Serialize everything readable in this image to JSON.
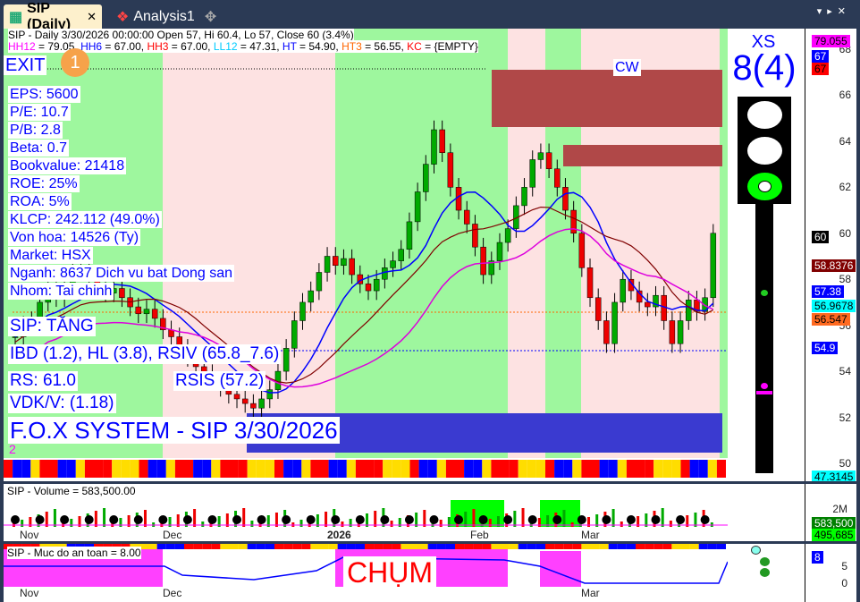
{
  "tabs": [
    {
      "label": "SIP (Daily)",
      "icon": "chart-icon"
    },
    {
      "label": "Analysis1",
      "icon": "analysis-icon"
    }
  ],
  "header": {
    "line1": "SIP - Daily 3/30/2026 00:00:00 Open 57, Hi 60.4, Lo 57, Close 60 (3.4%)",
    "hh12": "HH12",
    "hh12v": " = 79.05, ",
    "hh6": "HH6",
    "hh6v": " = 67.00, ",
    "hh3": "HH3",
    "hh3v": " = 67.00, ",
    "ll12": "LL12",
    "ll12v": " = 47.31, ",
    "ht": "HT",
    "htv": "  = 54.90, ",
    "ht3": "HT3",
    "ht3v": "  = 56.55, ",
    "kc": "KC",
    "kcv": " = {EMPTY}"
  },
  "overlay": {
    "exit": "EXIT",
    "exit_num": "1",
    "cw": "CW",
    "eps": "EPS: 5600",
    "pe": "P/E: 10.7",
    "pb": "P/B: 2.8",
    "beta": "Beta: 0.7",
    "bookvalue": "Bookvalue: 21418",
    "roe": "ROE: 25%",
    "roa": "ROA: 5%",
    "klcp": "KLCP: 242.112 (49.0%)",
    "vonhoa": "Von hoa: 14526 (Ty)",
    "market": "Market: HSX",
    "nganh": "Nganh: 8637 Dich vu bat Dong san",
    "nhom": "Nhom: Tai chinh",
    "status": "SIP: TĂNG",
    "ibd": "IBD (1.2), HL (3.8), RSIV (65.8_7.6)",
    "rs": "RS: 61.0",
    "rsis": "RSIS (57.2)",
    "vdk": "VDK/V:  (1.18)",
    "fox": "F.O.X SYSTEM - SIP 3/30/2026",
    "two": "2"
  },
  "signal": {
    "title": "XS",
    "value": "8(4)",
    "lights": [
      "off",
      "off",
      "green"
    ]
  },
  "price_axis": {
    "ticks": [
      "68",
      "66",
      "64",
      "62",
      "60",
      "58",
      "56",
      "54",
      "52",
      "50"
    ],
    "labels": [
      {
        "v": "79.055",
        "bg": "#ff00ff",
        "c": "#000"
      },
      {
        "v": "67",
        "bg": "#0000ff",
        "c": "#fff"
      },
      {
        "v": "67",
        "bg": "#ff0000",
        "c": "#000"
      },
      {
        "v": "60",
        "bg": "#000",
        "c": "#fff"
      },
      {
        "v": "58.8376",
        "bg": "#800000",
        "c": "#fff"
      },
      {
        "v": "57.38",
        "bg": "#0000ff",
        "c": "#fff"
      },
      {
        "v": "56.9678",
        "bg": "#00ffff",
        "c": "#000"
      },
      {
        "v": "56.547",
        "bg": "#ff6a20",
        "c": "#000"
      },
      {
        "v": "54.9",
        "bg": "#0000ff",
        "c": "#fff"
      },
      {
        "v": "47.3145",
        "bg": "#00ffff",
        "c": "#000"
      }
    ]
  },
  "months": [
    "Nov",
    "Dec",
    "2026",
    "Feb",
    "Mar"
  ],
  "volume": {
    "title": "SIP - Volume = 583,500.00",
    "tick": "2M",
    "labels": [
      "583,500",
      "495,685"
    ]
  },
  "safety": {
    "title": "SIP - Muc do an toan = 8.00",
    "ticks": [
      "5",
      "0"
    ],
    "label": "8",
    "chum": "CHỤM"
  },
  "closes": [
    55.5,
    56,
    56.2,
    57,
    57.5,
    57.2,
    57.8,
    58.3,
    58.6,
    58,
    57.6,
    57.4,
    57.6,
    57.2,
    56.8,
    56.5,
    56.7,
    56.3,
    55.8,
    55.5,
    55,
    54.6,
    54.2,
    53.9,
    53.6,
    53.3,
    53,
    52.8,
    52.6,
    52.4,
    52.8,
    53.2,
    54,
    55,
    56.2,
    57,
    57.5,
    58.3,
    59,
    58.6,
    58.9,
    58.2,
    57.8,
    57.5,
    58,
    58.5,
    58.8,
    59.3,
    60.5,
    61.8,
    63,
    64.5,
    63.5,
    62,
    61,
    60.4,
    59.4,
    58.2,
    58.8,
    59.6,
    60.2,
    61.2,
    62,
    63.2,
    63.5,
    62.8,
    62,
    61,
    60,
    58.5,
    57.2,
    56.2,
    55.2,
    57,
    58,
    57.5,
    57,
    56.8,
    57.3,
    56.2,
    55.2,
    56.2,
    57.1,
    56.6,
    57.2,
    60
  ]
}
